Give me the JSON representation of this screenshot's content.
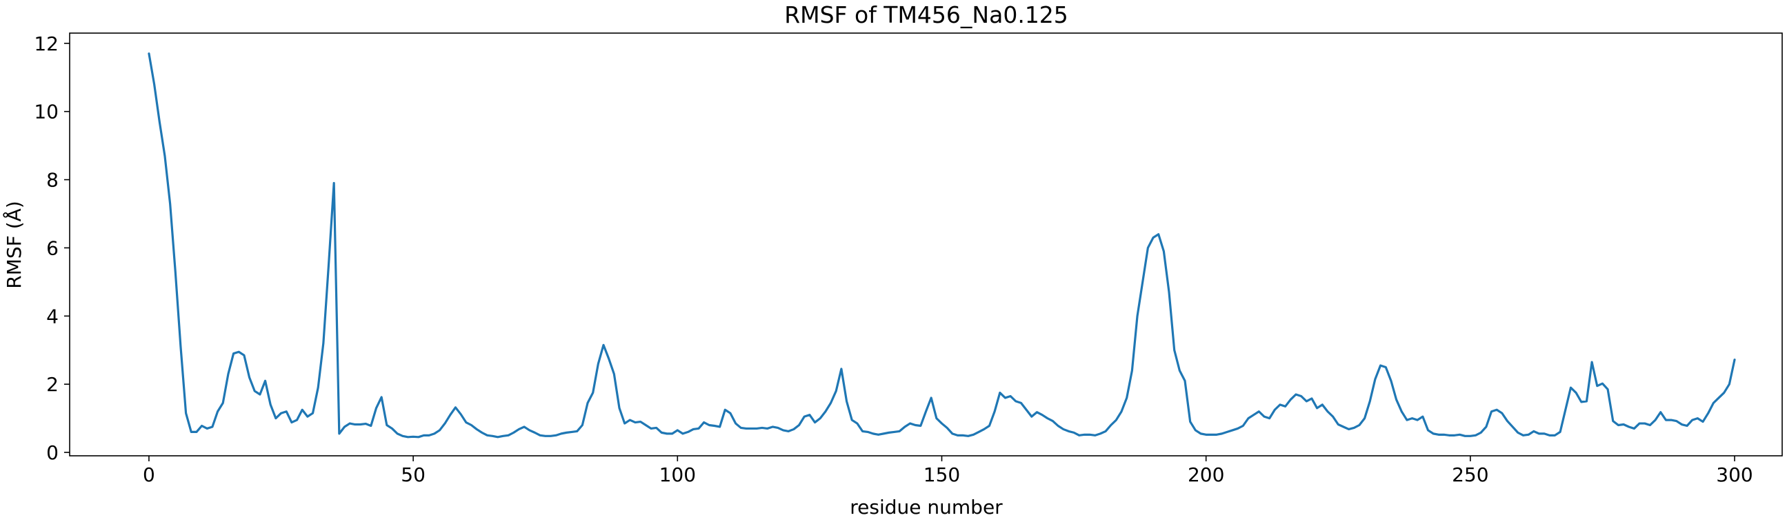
{
  "chart_data": {
    "type": "line",
    "title": "RMSF of TM456_Na0.125",
    "xlabel": "residue number",
    "ylabel": "RMSF (Å)",
    "xlim": [
      -15,
      309
    ],
    "ylim": [
      -0.1,
      12.3
    ],
    "xticks": [
      0,
      50,
      100,
      150,
      200,
      250,
      300
    ],
    "yticks": [
      0,
      2,
      4,
      6,
      8,
      10,
      12
    ],
    "grid": false,
    "line_color": "#1f77b4",
    "series": [
      {
        "values": [
          11.7,
          10.8,
          9.7,
          8.7,
          7.3,
          5.3,
          3.1,
          1.15,
          0.6,
          0.6,
          0.78,
          0.7,
          0.75,
          1.2,
          1.45,
          2.3,
          2.9,
          2.95,
          2.85,
          2.2,
          1.8,
          1.7,
          2.1,
          1.4,
          1.0,
          1.15,
          1.2,
          0.88,
          0.95,
          1.25,
          1.05,
          1.15,
          1.9,
          3.2,
          5.5,
          7.9,
          0.55,
          0.75,
          0.85,
          0.82,
          0.82,
          0.84,
          0.78,
          1.3,
          1.62,
          0.8,
          0.7,
          0.55,
          0.48,
          0.45,
          0.46,
          0.45,
          0.5,
          0.5,
          0.55,
          0.65,
          0.85,
          1.1,
          1.32,
          1.12,
          0.88,
          0.8,
          0.68,
          0.58,
          0.5,
          0.48,
          0.45,
          0.48,
          0.5,
          0.58,
          0.68,
          0.75,
          0.65,
          0.58,
          0.5,
          0.48,
          0.48,
          0.5,
          0.55,
          0.58,
          0.6,
          0.62,
          0.8,
          1.45,
          1.75,
          2.6,
          3.15,
          2.75,
          2.3,
          1.3,
          0.85,
          0.95,
          0.88,
          0.9,
          0.8,
          0.7,
          0.72,
          0.58,
          0.55,
          0.55,
          0.65,
          0.55,
          0.6,
          0.68,
          0.7,
          0.88,
          0.8,
          0.78,
          0.75,
          1.25,
          1.15,
          0.85,
          0.72,
          0.7,
          0.7,
          0.7,
          0.72,
          0.7,
          0.75,
          0.72,
          0.65,
          0.62,
          0.68,
          0.8,
          1.05,
          1.1,
          0.88,
          1.0,
          1.2,
          1.45,
          1.8,
          2.45,
          1.5,
          0.95,
          0.85,
          0.62,
          0.6,
          0.55,
          0.52,
          0.55,
          0.58,
          0.6,
          0.62,
          0.75,
          0.85,
          0.8,
          0.78,
          1.2,
          1.6,
          1.0,
          0.85,
          0.72,
          0.55,
          0.5,
          0.5,
          0.48,
          0.52,
          0.6,
          0.68,
          0.78,
          1.2,
          1.75,
          1.6,
          1.65,
          1.5,
          1.45,
          1.25,
          1.05,
          1.18,
          1.1,
          1.0,
          0.92,
          0.78,
          0.68,
          0.62,
          0.58,
          0.5,
          0.52,
          0.52,
          0.5,
          0.55,
          0.62,
          0.8,
          0.95,
          1.2,
          1.6,
          2.4,
          4.0,
          5.0,
          6.0,
          6.3,
          6.4,
          5.9,
          4.7,
          3.0,
          2.4,
          2.1,
          0.9,
          0.65,
          0.55,
          0.52,
          0.52,
          0.52,
          0.55,
          0.6,
          0.65,
          0.7,
          0.78,
          1.0,
          1.1,
          1.2,
          1.05,
          1.0,
          1.25,
          1.4,
          1.35,
          1.55,
          1.7,
          1.65,
          1.5,
          1.58,
          1.3,
          1.4,
          1.2,
          1.05,
          0.82,
          0.75,
          0.68,
          0.72,
          0.8,
          1.0,
          1.5,
          2.15,
          2.55,
          2.5,
          2.1,
          1.55,
          1.2,
          0.95,
          1.0,
          0.95,
          1.05,
          0.65,
          0.55,
          0.52,
          0.52,
          0.5,
          0.5,
          0.52,
          0.48,
          0.48,
          0.5,
          0.58,
          0.75,
          1.2,
          1.25,
          1.15,
          0.92,
          0.75,
          0.58,
          0.5,
          0.52,
          0.62,
          0.55,
          0.55,
          0.5,
          0.5,
          0.6,
          1.25,
          1.9,
          1.75,
          1.48,
          1.5,
          2.65,
          1.95,
          2.02,
          1.85,
          0.92,
          0.8,
          0.82,
          0.75,
          0.7,
          0.85,
          0.85,
          0.8,
          0.95,
          1.18,
          0.95,
          0.95,
          0.92,
          0.82,
          0.78,
          0.95,
          1.0,
          0.9,
          1.15,
          1.45,
          1.6,
          1.75,
          2.0,
          2.72
        ]
      }
    ]
  }
}
